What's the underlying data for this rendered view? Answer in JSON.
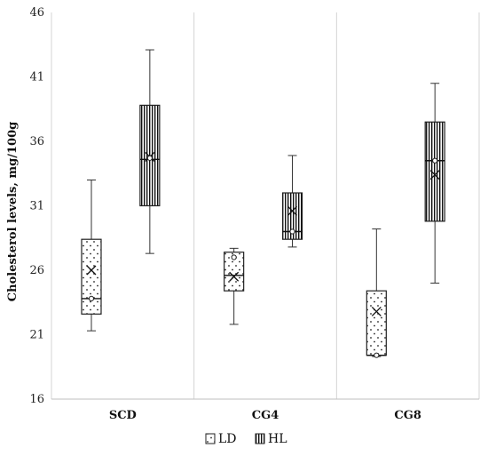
{
  "chart_data": {
    "type": "boxplot",
    "title": "",
    "xlabel": "",
    "ylabel": "Cholesterol levels, mg/100g",
    "ylim": [
      16,
      46
    ],
    "yticks": [
      16,
      21,
      26,
      31,
      36,
      41,
      46
    ],
    "grid": {
      "vertical": true,
      "horizontal": false
    },
    "legend_position": "bottom",
    "categories": [
      "SCD",
      "CG4",
      "CG8"
    ],
    "series": [
      {
        "name": "LD",
        "pattern": "dots",
        "boxes": [
          {
            "category": "SCD",
            "min": 21.3,
            "q1": 22.6,
            "median": 23.8,
            "q3": 28.4,
            "max": 33.0,
            "mean": 26.0,
            "outlier_point": 23.8
          },
          {
            "category": "CG4",
            "min": 21.8,
            "q1": 24.4,
            "median": 25.6,
            "q3": 27.4,
            "max": 27.7,
            "mean": 25.5,
            "outlier_point": 27.0
          },
          {
            "category": "CG8",
            "min": 19.3,
            "q1": 19.4,
            "median": 19.4,
            "q3": 24.4,
            "max": 29.2,
            "mean": 22.8,
            "outlier_point": 19.4
          }
        ]
      },
      {
        "name": "HL",
        "pattern": "vertical-lines",
        "boxes": [
          {
            "category": "SCD",
            "min": 27.3,
            "q1": 31.0,
            "median": 34.6,
            "q3": 38.8,
            "max": 43.1,
            "mean": 34.8,
            "outlier_point": 34.7
          },
          {
            "category": "CG4",
            "min": 27.8,
            "q1": 28.4,
            "median": 29.0,
            "q3": 32.0,
            "max": 34.9,
            "mean": 30.6,
            "outlier_point": 29.0
          },
          {
            "category": "CG8",
            "min": 25.0,
            "q1": 29.8,
            "median": 34.5,
            "q3": 37.5,
            "max": 40.5,
            "mean": 33.4,
            "outlier_point": 34.5
          }
        ]
      }
    ]
  }
}
